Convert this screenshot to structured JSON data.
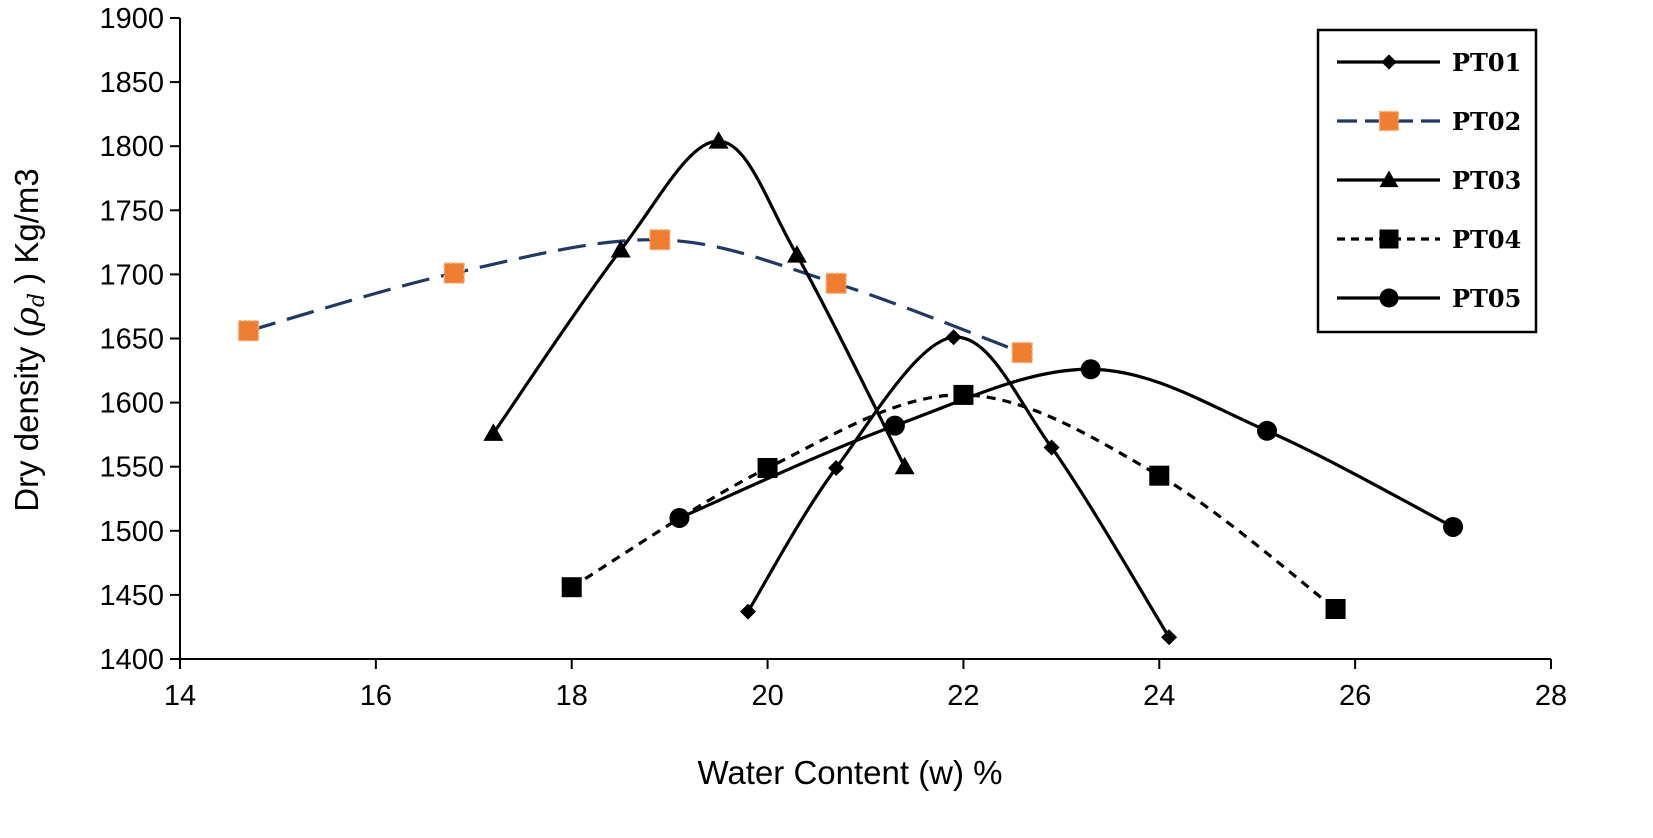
{
  "chart_data": {
    "type": "line",
    "xlabel": "Water Content (w) %",
    "ylabel_prefix": "Dry density (",
    "ylabel_symbol": "ρ",
    "ylabel_subscript": "d",
    "ylabel_suffix": " ) Kg/m3",
    "xlim": [
      14,
      28
    ],
    "ylim": [
      1400,
      1900
    ],
    "xticks": [
      "14",
      "16",
      "18",
      "20",
      "22",
      "24",
      "26",
      "28"
    ],
    "yticks": [
      "1400",
      "1450",
      "1500",
      "1550",
      "1600",
      "1650",
      "1700",
      "1750",
      "1800",
      "1850",
      "1900"
    ],
    "grid": false,
    "legend_position": "top-right",
    "series": [
      {
        "name": "PT01",
        "marker": "diamond",
        "line_style": "solid",
        "line_color": "#000000",
        "marker_color": "#000000",
        "x": [
          19.8,
          20.7,
          21.9,
          22.9,
          24.1
        ],
        "y": [
          1437,
          1549,
          1651,
          1565,
          1417
        ]
      },
      {
        "name": "PT02",
        "marker": "square-orange",
        "line_style": "dashed",
        "line_color": "#1f3864",
        "marker_color": "#ed7d31",
        "x": [
          14.7,
          16.8,
          18.9,
          20.7,
          22.6
        ],
        "y": [
          1656,
          1701,
          1727,
          1693,
          1639
        ]
      },
      {
        "name": "PT03",
        "marker": "triangle",
        "line_style": "solid",
        "line_color": "#000000",
        "marker_color": "#000000",
        "x": [
          17.2,
          18.5,
          19.5,
          20.3,
          21.4
        ],
        "y": [
          1576,
          1719,
          1804,
          1715,
          1550
        ]
      },
      {
        "name": "PT04",
        "marker": "square",
        "line_style": "dotted",
        "line_color": "#000000",
        "marker_color": "#000000",
        "x": [
          18.0,
          20.0,
          22.0,
          24.0,
          25.8
        ],
        "y": [
          1456,
          1549,
          1606,
          1543,
          1439
        ]
      },
      {
        "name": "PT05",
        "marker": "circle",
        "line_style": "solid",
        "line_color": "#000000",
        "marker_color": "#000000",
        "x": [
          19.1,
          21.3,
          23.3,
          25.1,
          27.0
        ],
        "y": [
          1510,
          1582,
          1626,
          1578,
          1503
        ]
      }
    ]
  }
}
